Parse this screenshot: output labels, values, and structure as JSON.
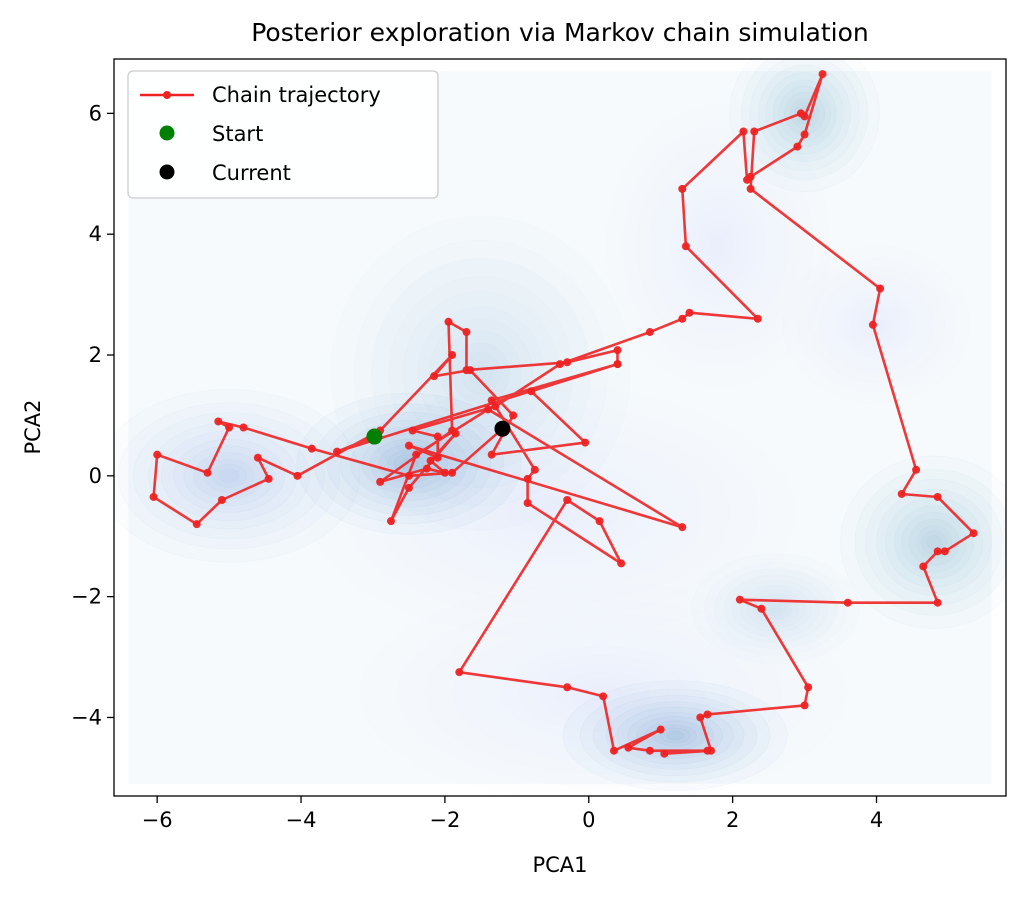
{
  "chart_data": {
    "type": "line",
    "title": "Posterior exploration via Markov chain simulation",
    "xlabel": "PCA1",
    "ylabel": "PCA2",
    "xlim": [
      -6.6,
      5.8
    ],
    "ylim": [
      -5.3,
      6.9
    ],
    "xticks": [
      -6,
      -4,
      -2,
      0,
      2,
      4
    ],
    "yticks": [
      -4,
      -2,
      0,
      2,
      4,
      6
    ],
    "tick_labels_x": [
      "−6",
      "−4",
      "−2",
      "0",
      "2",
      "4"
    ],
    "tick_labels_y": [
      "−4",
      "−2",
      "0",
      "2",
      "4",
      "6"
    ],
    "legend_position": "top-left",
    "legend": [
      "Chain trajectory",
      "Start",
      "Current"
    ],
    "colors": {
      "trajectory": "#ee2222",
      "start": "#008000",
      "current": "#000000",
      "density": "#1f77b4"
    },
    "density_peaks": [
      {
        "x": -5.0,
        "y": 0.0,
        "sx": 0.7,
        "sy": 0.55,
        "w": 0.75
      },
      {
        "x": -2.5,
        "y": 0.2,
        "sx": 0.6,
        "sy": 0.45,
        "w": 1.0
      },
      {
        "x": -1.5,
        "y": 1.7,
        "sx": 0.8,
        "sy": 1.0,
        "w": 0.45
      },
      {
        "x": 1.2,
        "y": -4.3,
        "sx": 0.6,
        "sy": 0.35,
        "w": 1.0
      },
      {
        "x": 0.2,
        "y": -3.6,
        "sx": 1.3,
        "sy": 0.7,
        "w": 0.2
      },
      {
        "x": 3.0,
        "y": 6.0,
        "sx": 0.4,
        "sy": 0.5,
        "w": 0.8
      },
      {
        "x": 4.8,
        "y": -1.1,
        "sx": 0.5,
        "sy": 0.55,
        "w": 0.8
      },
      {
        "x": 2.6,
        "y": -2.2,
        "sx": 0.45,
        "sy": 0.35,
        "w": 0.4
      },
      {
        "x": 4.0,
        "y": 2.5,
        "sx": 0.5,
        "sy": 0.5,
        "w": 0.2
      },
      {
        "x": 1.8,
        "y": 3.8,
        "sx": 0.6,
        "sy": 0.9,
        "w": 0.18
      },
      {
        "x": -0.5,
        "y": -0.6,
        "sx": 1.3,
        "sy": 0.8,
        "w": 0.15
      }
    ],
    "series": [
      {
        "name": "Chain trajectory",
        "x": [
          -2.98,
          -3.5,
          0.4,
          0.4,
          -0.3,
          -1.7,
          -1.7,
          -1.95,
          -1.9,
          -2.9,
          -2.25,
          -2.0,
          -2.2,
          -1.85,
          -2.5,
          -2.75,
          -2.4,
          -1.4,
          1.3,
          -2.5,
          -2.1,
          -2.1,
          -2.45,
          -1.3,
          -0.4,
          0.85,
          1.3,
          1.4,
          2.35,
          1.35,
          1.3,
          2.15,
          2.2,
          2.25,
          2.9,
          3.0,
          3.25,
          3.0,
          2.95,
          2.3,
          2.25,
          4.05,
          3.95,
          4.55,
          4.35,
          4.85,
          5.35,
          4.95,
          4.85,
          4.65,
          4.85,
          3.6,
          2.1,
          2.4,
          3.05,
          3.0,
          1.65,
          1.55,
          1.7,
          1.05,
          1.65,
          0.85,
          0.55,
          1.0,
          0.35,
          0.2,
          -0.3,
          -1.8,
          -0.3,
          0.15,
          0.45,
          -0.85,
          -0.85,
          -0.75,
          -1.35,
          0.4,
          -0.8,
          -0.05,
          -1.35,
          -1.05,
          -1.65,
          -2.15,
          -1.9,
          -2.9,
          -4.05,
          -4.6,
          -4.45,
          -5.1,
          -5.45,
          -6.05,
          -6.0,
          -5.3,
          -5.0,
          -5.15,
          -4.8,
          -3.85,
          -2.5,
          -1.9,
          -1.2
        ],
        "y": [
          0.65,
          0.4,
          1.85,
          2.08,
          1.88,
          1.75,
          2.38,
          2.55,
          0.75,
          -0.1,
          0.12,
          0.05,
          0.25,
          0.7,
          -0.2,
          -0.75,
          0.35,
          1.1,
          -0.85,
          0.5,
          0.3,
          0.65,
          0.75,
          1.15,
          1.85,
          2.38,
          2.6,
          2.7,
          2.6,
          3.8,
          4.75,
          5.7,
          4.9,
          4.95,
          5.45,
          5.65,
          6.65,
          5.95,
          6.0,
          5.7,
          4.75,
          3.1,
          2.5,
          0.1,
          -0.3,
          -0.35,
          -0.95,
          -1.25,
          -1.25,
          -1.5,
          -2.1,
          -2.1,
          -2.05,
          -2.2,
          -3.5,
          -3.8,
          -3.95,
          -4.0,
          -4.55,
          -4.6,
          -4.55,
          -4.55,
          -4.5,
          -4.2,
          -4.55,
          -3.65,
          -3.5,
          -3.25,
          -0.4,
          -0.75,
          -1.45,
          -0.45,
          -0.05,
          0.1,
          1.25,
          1.85,
          1.4,
          0.55,
          0.35,
          1.0,
          1.75,
          1.65,
          2.0,
          0.75,
          0.0,
          0.3,
          -0.05,
          -0.4,
          -0.8,
          -0.35,
          0.35,
          0.05,
          0.8,
          0.9,
          0.8,
          0.45,
          0.0,
          0.05,
          0.78
        ]
      }
    ],
    "start": {
      "x": -2.98,
      "y": 0.65
    },
    "current": {
      "x": -1.2,
      "y": 0.78
    }
  }
}
